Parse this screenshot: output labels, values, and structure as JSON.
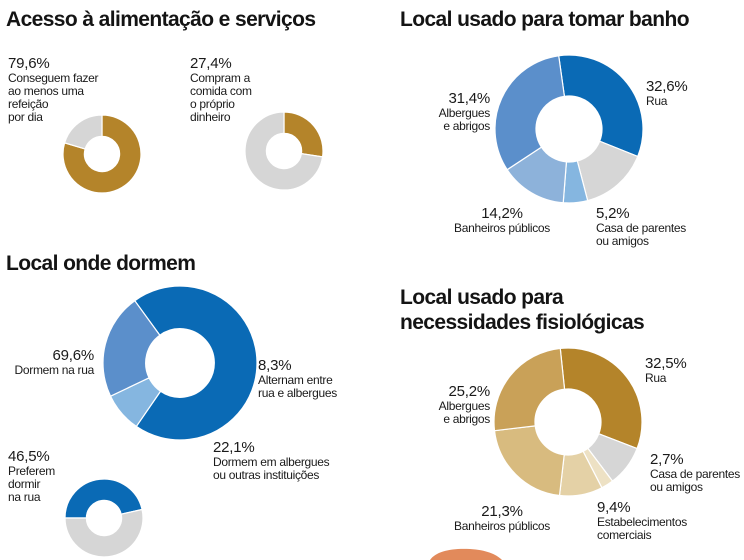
{
  "colors": {
    "blue": "#0a6ab5",
    "blue_mid": "#5b8fcb",
    "blue_light": "#8db2da",
    "blue_pale": "#85b6e0",
    "gold": "#b4842a",
    "gold_mid": "#c9a158",
    "gold_light": "#d8bb7f",
    "gold_pale": "#e4d1a6",
    "gold_faint": "#ede1c4",
    "grey": "#d6d6d6",
    "deco_orange": "#e28a5b"
  },
  "sections": {
    "alimentacao": "Acesso à alimentação e serviços",
    "banho": "Local usado para tomar banho",
    "dormem": "Local onde dormem",
    "fisiologicas": "Local usado para\nnecessidades fisiológicas"
  },
  "chart_data": [
    {
      "type": "pie",
      "id": "refeicao",
      "section": "alimentacao",
      "slices": [
        {
          "label": "Conseguem fazer\nao menos uma\nrefeição\npor dia",
          "value": 79.6,
          "value_label": "79,6%",
          "color": "#b4842a",
          "labeled": true
        },
        {
          "label": "",
          "value": 20.4,
          "color": "#d6d6d6",
          "labeled": false
        }
      ]
    },
    {
      "type": "pie",
      "id": "dinheiro",
      "section": "alimentacao",
      "slices": [
        {
          "label": "Compram a\ncomida com\no próprio\ndinheiro",
          "value": 27.4,
          "value_label": "27,4%",
          "color": "#b4842a",
          "labeled": true
        },
        {
          "label": "",
          "value": 72.6,
          "color": "#d6d6d6",
          "labeled": false
        }
      ]
    },
    {
      "type": "pie",
      "id": "banho",
      "section": "banho",
      "slices": [
        {
          "label": "Rua",
          "value": 32.6,
          "value_label": "32,6%",
          "color": "#0a6ab5",
          "labeled": true
        },
        {
          "label": "",
          "value": 14.6,
          "color": "#d6d6d6",
          "labeled": false
        },
        {
          "label": "Casa de parentes\nou amigos",
          "value": 5.2,
          "value_label": "5,2%",
          "color": "#85b6e0",
          "labeled": true
        },
        {
          "label": "Banheiros públicos",
          "value": 14.2,
          "value_label": "14,2%",
          "color": "#8db2da",
          "labeled": true
        },
        {
          "label": "Albergues\ne abrigos",
          "value": 31.4,
          "value_label": "31,4%",
          "color": "#5b8fcb",
          "labeled": true
        }
      ]
    },
    {
      "type": "pie",
      "id": "dormem",
      "section": "dormem",
      "slices": [
        {
          "label": "Dormem na rua",
          "value": 69.6,
          "value_label": "69,6%",
          "color": "#0a6ab5",
          "labeled": true
        },
        {
          "label": "Alternam entre\nrua e albergues",
          "value": 8.3,
          "value_label": "8,3%",
          "color": "#85b6e0",
          "labeled": true
        },
        {
          "label": "Dormem em albergues\nou outras instituições",
          "value": 22.1,
          "value_label": "22,1%",
          "color": "#5b8fcb",
          "labeled": true
        }
      ]
    },
    {
      "type": "pie",
      "id": "preferem",
      "section": "dormem",
      "slices": [
        {
          "label": "Preferem\ndormir\nna rua",
          "value": 46.5,
          "value_label": "46,5%",
          "color": "#0a6ab5",
          "labeled": true
        },
        {
          "label": "",
          "value": 53.5,
          "color": "#d6d6d6",
          "labeled": false
        }
      ]
    },
    {
      "type": "pie",
      "id": "fisiologicas",
      "section": "fisiologicas",
      "slices": [
        {
          "label": "Rua",
          "value": 32.5,
          "value_label": "32,5%",
          "color": "#b4842a",
          "labeled": true
        },
        {
          "label": "",
          "value": 8.9,
          "color": "#d6d6d6",
          "labeled": false
        },
        {
          "label": "Casa de parentes\nou amigos",
          "value": 2.7,
          "value_label": "2,7%",
          "color": "#ede1c4",
          "labeled": true
        },
        {
          "label": "Estabelecimentos\ncomerciais",
          "value": 9.4,
          "value_label": "9,4%",
          "color": "#e4d1a6",
          "labeled": true
        },
        {
          "label": "Banheiros públicos",
          "value": 21.3,
          "value_label": "21,3%",
          "color": "#d8bb7f",
          "labeled": true
        },
        {
          "label": "Albergues\ne abrigos",
          "value": 25.2,
          "value_label": "25,2%",
          "color": "#c9a158",
          "labeled": true
        }
      ]
    }
  ]
}
